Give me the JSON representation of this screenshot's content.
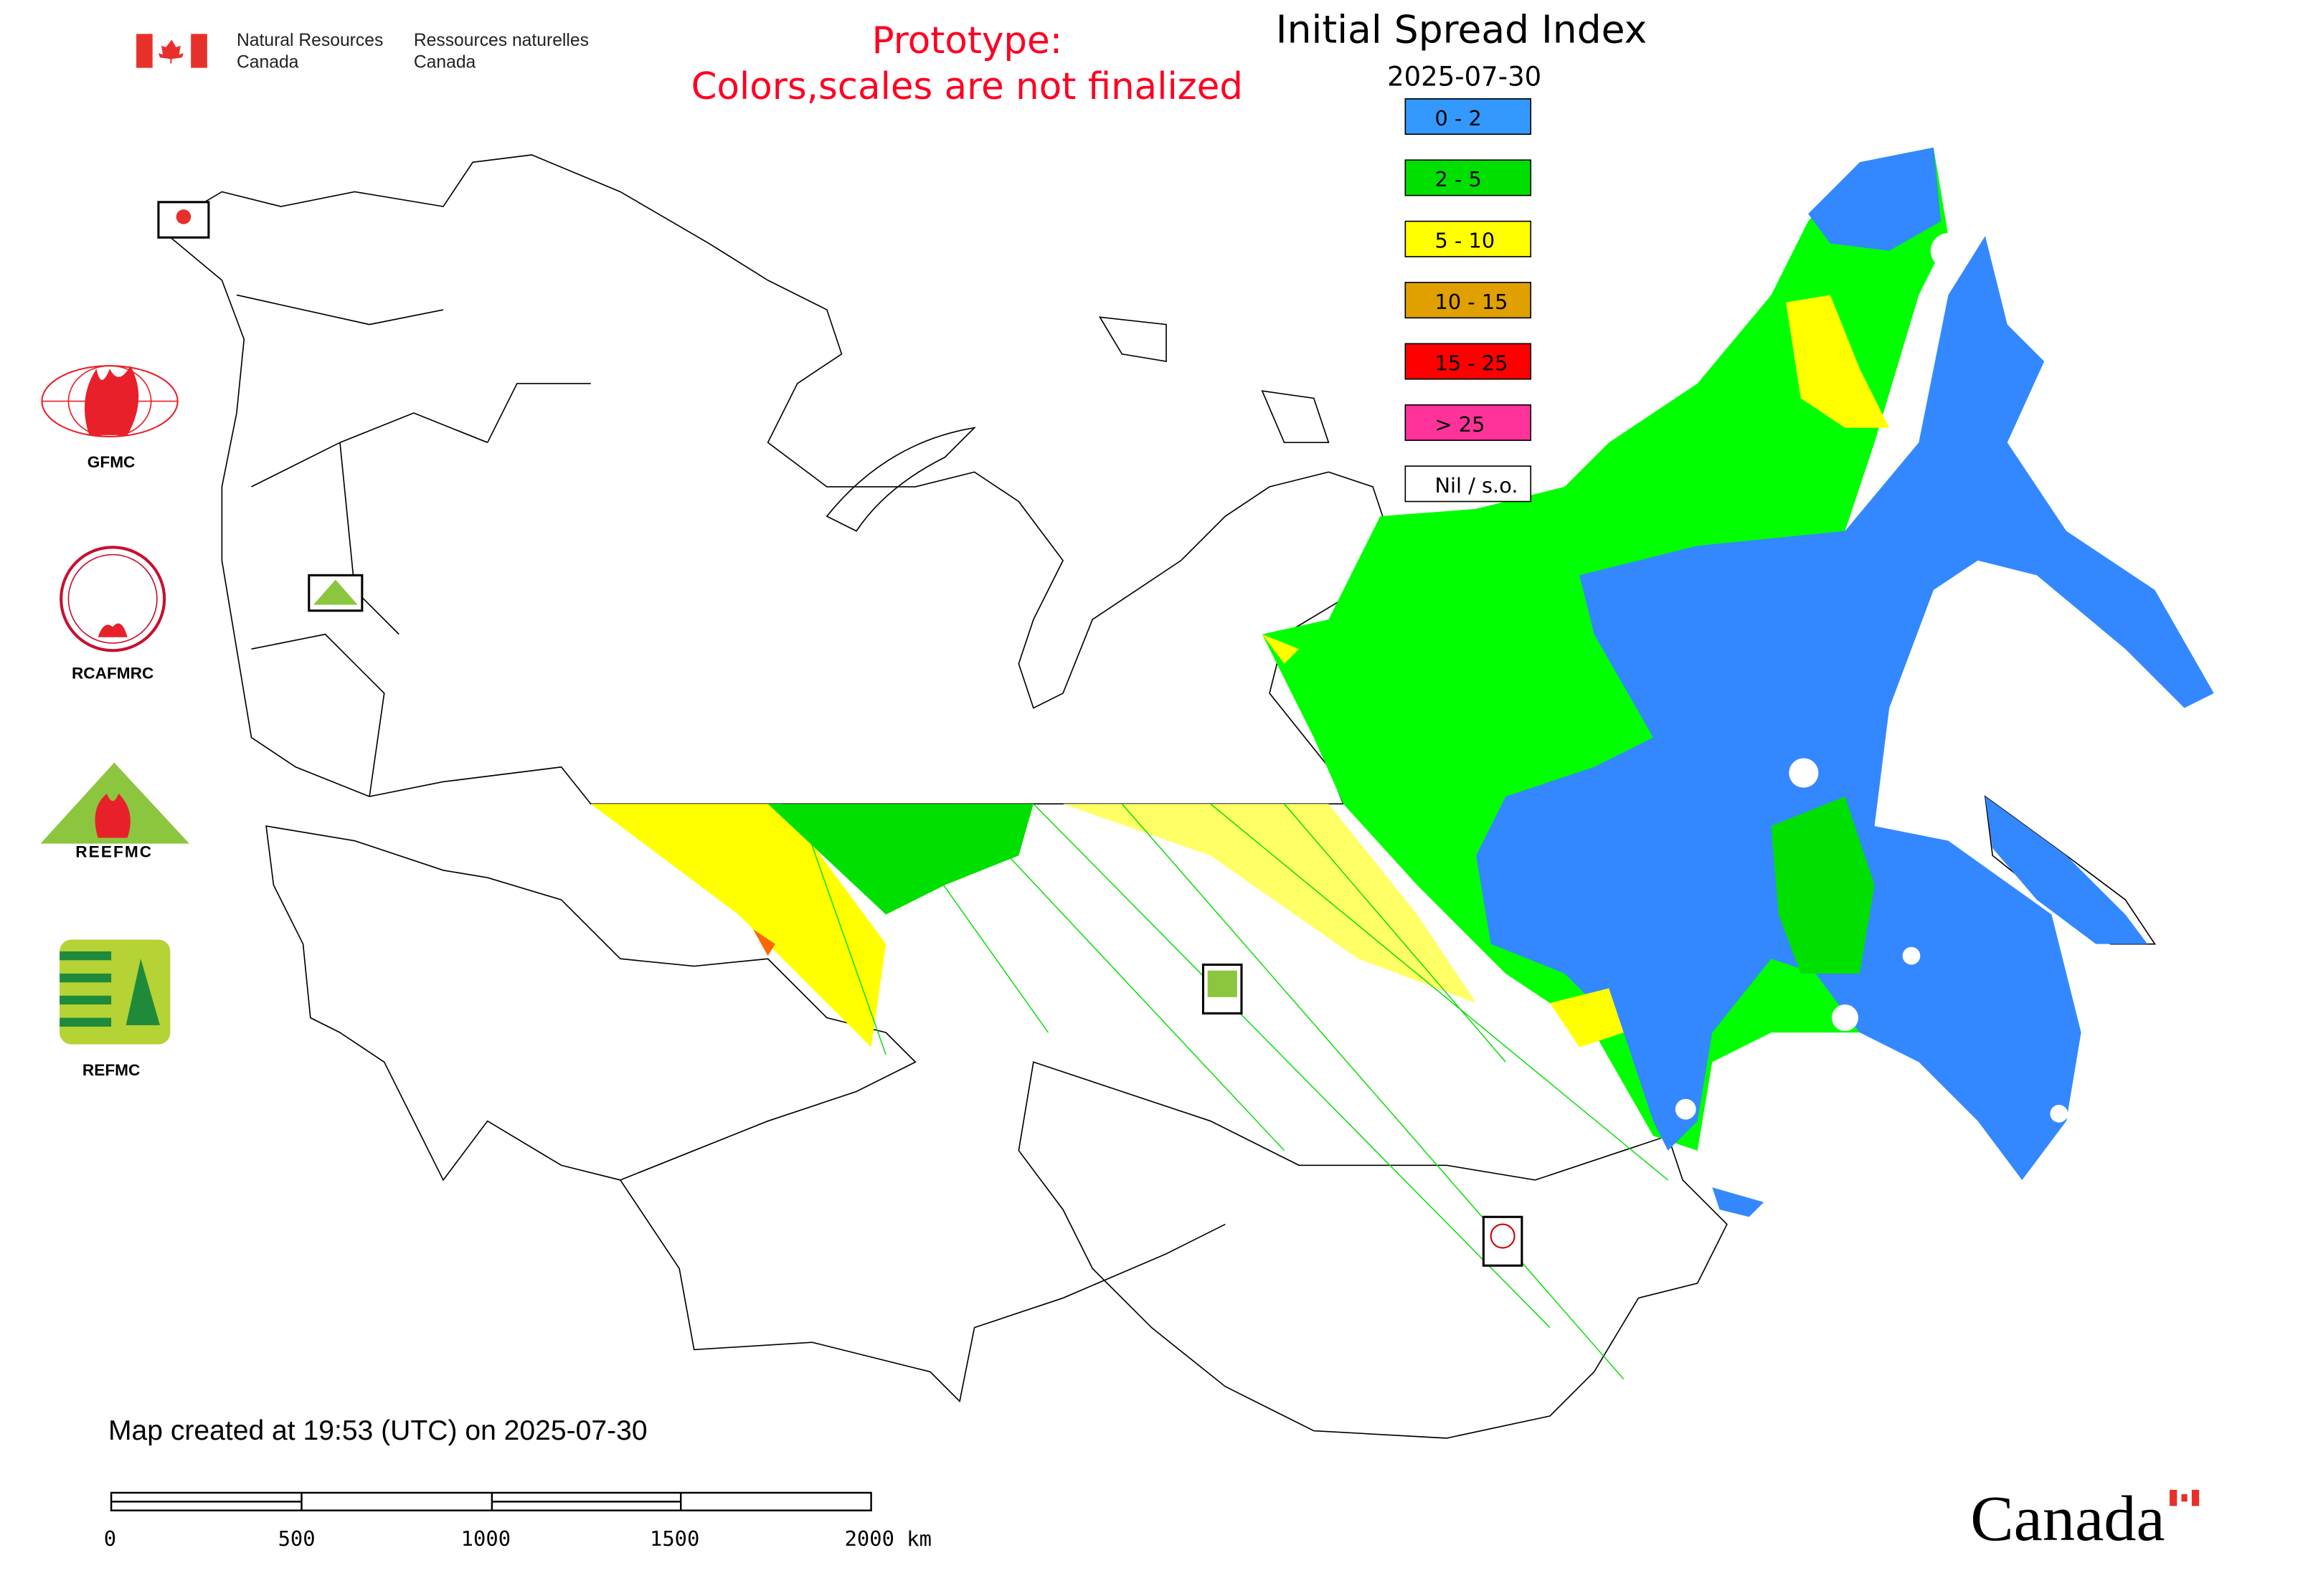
{
  "header": {
    "nrcan_en_line1": "Natural Resources",
    "nrcan_en_line2": "Canada",
    "nrcan_fr_line1": "Ressources naturelles",
    "nrcan_fr_line2": "Canada",
    "prototype_line1": "Prototype:",
    "prototype_line2": "Colors,scales are not finalized",
    "title": "Initial Spread Index",
    "date": "2025-07-30"
  },
  "legend": [
    {
      "label": "0 - 2",
      "color": "#3399ff"
    },
    {
      "label": "2 - 5",
      "color": "#00e000"
    },
    {
      "label": "5 - 10",
      "color": "#ffff00"
    },
    {
      "label": "10 - 15",
      "color": "#e0a000"
    },
    {
      "label": "15 - 25",
      "color": "#ff0000"
    },
    {
      "label": "> 25",
      "color": "#ff3399"
    },
    {
      "label": "Nil / s.o.",
      "color": "#ffffff"
    }
  ],
  "logos": {
    "gfmc": "GFMC",
    "rcafmrc": "RCAFMRC",
    "reefmc": "REEFMC",
    "refmc": "REFMC",
    "canada_wordmark": "Canada"
  },
  "footer": {
    "created": "Map created at 19:53 (UTC) on 2025-07-30",
    "scale_labels": [
      "0",
      "500",
      "1000",
      "1500",
      "2000 km"
    ]
  },
  "colors": {
    "prototype_text": "#ff0022",
    "canada_red": "#e8302a"
  }
}
